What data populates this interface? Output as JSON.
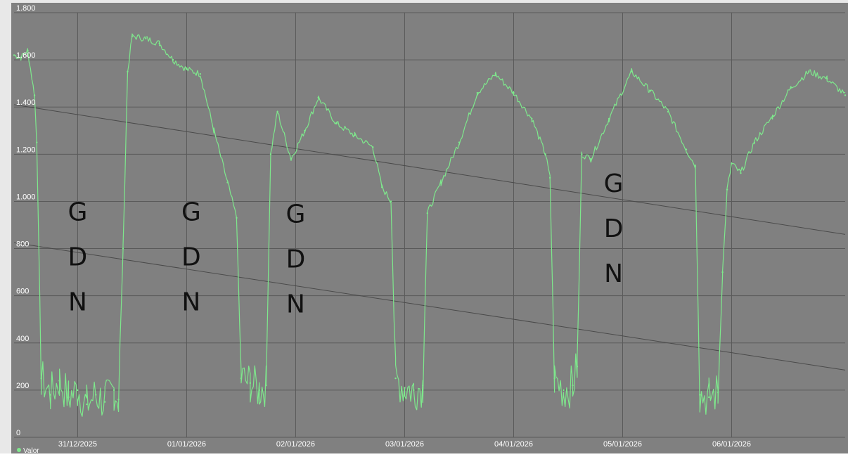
{
  "chart_data": {
    "type": "line",
    "title": "",
    "xlabel": "",
    "ylabel": "",
    "ylim": [
      0,
      1800
    ],
    "xlim": [
      "2025-12-30T10:00",
      "2026-01-07T01:00"
    ],
    "y_ticks": [
      {
        "value": 0,
        "label": "0"
      },
      {
        "value": 200,
        "label": "200"
      },
      {
        "value": 400,
        "label": "400"
      },
      {
        "value": 600,
        "label": "600"
      },
      {
        "value": 800,
        "label": "800"
      },
      {
        "value": 1000,
        "label": "1.000"
      },
      {
        "value": 1200,
        "label": "1.200"
      },
      {
        "value": 1400,
        "label": "1.400"
      },
      {
        "value": 1600,
        "label": "1.600"
      },
      {
        "value": 1800,
        "label": "1.800"
      }
    ],
    "x_ticks": [
      {
        "value": "2025-12-31T00:00",
        "label": "31/12/2025"
      },
      {
        "value": "2026-01-01T00:00",
        "label": "01/01/2026"
      },
      {
        "value": "2026-01-02T00:00",
        "label": "02/01/2026"
      },
      {
        "value": "2026-01-03T00:00",
        "label": "03/01/2026"
      },
      {
        "value": "2026-01-04T00:00",
        "label": "04/01/2026"
      },
      {
        "value": "2026-01-05T00:00",
        "label": "05/01/2026"
      },
      {
        "value": "2026-01-06T00:00",
        "label": "06/01/2026"
      }
    ],
    "grid": true,
    "legend_position": "bottom-left",
    "series": [
      {
        "name": "Valor",
        "color": "#7ee88c",
        "points": [
          [
            "2025-12-30T10:00",
            1620
          ],
          [
            "2025-12-30T11:30",
            1610
          ],
          [
            "2025-12-30T13:00",
            1640
          ],
          [
            "2025-12-30T14:30",
            1450
          ],
          [
            "2025-12-30T15:00",
            1250
          ],
          [
            "2025-12-30T16:00",
            250
          ],
          [
            "2025-12-30T18:00",
            180
          ],
          [
            "2025-12-30T20:00",
            240
          ],
          [
            "2025-12-30T22:00",
            170
          ],
          [
            "2025-12-31T00:00",
            200
          ],
          [
            "2025-12-31T02:00",
            140
          ],
          [
            "2025-12-31T04:00",
            180
          ],
          [
            "2025-12-31T06:00",
            150
          ],
          [
            "2025-12-31T08:00",
            200
          ],
          [
            "2025-12-31T09:00",
            160
          ],
          [
            "2025-12-31T10:00",
            800
          ],
          [
            "2025-12-31T11:00",
            1550
          ],
          [
            "2025-12-31T12:00",
            1700
          ],
          [
            "2025-12-31T15:00",
            1690
          ],
          [
            "2025-12-31T18:00",
            1670
          ],
          [
            "2025-12-31T21:00",
            1600
          ],
          [
            "2026-01-01T00:00",
            1560
          ],
          [
            "2026-01-01T03:00",
            1540
          ],
          [
            "2026-01-01T06:00",
            1300
          ],
          [
            "2026-01-01T09:00",
            1080
          ],
          [
            "2026-01-01T11:00",
            930
          ],
          [
            "2026-01-01T12:00",
            250
          ],
          [
            "2026-01-01T14:00",
            230
          ],
          [
            "2026-01-01T16:00",
            200
          ],
          [
            "2026-01-01T17:30",
            220
          ],
          [
            "2026-01-01T18:30",
            1200
          ],
          [
            "2026-01-01T20:00",
            1380
          ],
          [
            "2026-01-01T23:00",
            1180
          ],
          [
            "2026-01-02T02:00",
            1300
          ],
          [
            "2026-01-02T05:00",
            1440
          ],
          [
            "2026-01-02T09:00",
            1330
          ],
          [
            "2026-01-02T13:00",
            1280
          ],
          [
            "2026-01-02T17:00",
            1230
          ],
          [
            "2026-01-02T19:00",
            1060
          ],
          [
            "2026-01-02T21:00",
            1000
          ],
          [
            "2026-01-02T22:00",
            250
          ],
          [
            "2026-01-03T00:00",
            210
          ],
          [
            "2026-01-03T02:00",
            200
          ],
          [
            "2026-01-03T04:00",
            220
          ],
          [
            "2026-01-03T05:00",
            950
          ],
          [
            "2026-01-03T08:00",
            1080
          ],
          [
            "2026-01-03T12:00",
            1250
          ],
          [
            "2026-01-03T16:00",
            1460
          ],
          [
            "2026-01-03T20:00",
            1540
          ],
          [
            "2026-01-04T00:00",
            1460
          ],
          [
            "2026-01-04T04:00",
            1350
          ],
          [
            "2026-01-04T07:00",
            1200
          ],
          [
            "2026-01-04T08:00",
            1100
          ],
          [
            "2026-01-04T09:00",
            250
          ],
          [
            "2026-01-04T11:00",
            200
          ],
          [
            "2026-01-04T13:00",
            220
          ],
          [
            "2026-01-04T14:00",
            300
          ],
          [
            "2026-01-04T15:00",
            1200
          ],
          [
            "2026-01-04T17:00",
            1180
          ],
          [
            "2026-01-04T21:00",
            1350
          ],
          [
            "2026-01-05T02:00",
            1550
          ],
          [
            "2026-01-05T06:00",
            1470
          ],
          [
            "2026-01-05T10:00",
            1380
          ],
          [
            "2026-01-05T14:00",
            1220
          ],
          [
            "2026-01-05T16:00",
            1150
          ],
          [
            "2026-01-05T17:00",
            180
          ],
          [
            "2026-01-05T19:00",
            170
          ],
          [
            "2026-01-05T21:00",
            190
          ],
          [
            "2026-01-05T22:00",
            700
          ],
          [
            "2026-01-05T23:00",
            1050
          ],
          [
            "2026-01-06T00:00",
            1160
          ],
          [
            "2026-01-06T02:00",
            1120
          ],
          [
            "2026-01-06T05:00",
            1250
          ],
          [
            "2026-01-06T09:00",
            1360
          ],
          [
            "2026-01-06T13:00",
            1480
          ],
          [
            "2026-01-06T17:00",
            1550
          ],
          [
            "2026-01-06T21:00",
            1520
          ],
          [
            "2026-01-07T01:00",
            1450
          ]
        ]
      }
    ],
    "trend_lines": [
      {
        "start": [
          "2025-12-30T10:00",
          1410
        ],
        "end": [
          "2026-01-07T01:00",
          860
        ]
      },
      {
        "start": [
          "2025-12-30T10:00",
          825
        ],
        "end": [
          "2026-01-07T01:00",
          285
        ]
      }
    ],
    "annotations": [
      {
        "text": "GDN",
        "letters": [
          "G",
          "D",
          "N"
        ],
        "at": "2025-12-31T00:00",
        "y": 920
      },
      {
        "text": "GDN",
        "letters": [
          "G",
          "D",
          "N"
        ],
        "at": "2026-01-01T01:00",
        "y": 920
      },
      {
        "text": "GDN",
        "letters": [
          "G",
          "D",
          "N"
        ],
        "at": "2026-01-02T00:00",
        "y": 910
      },
      {
        "text": "GDN",
        "letters": [
          "G",
          "D",
          "N"
        ],
        "at": "2026-01-04T22:00",
        "y": 1040
      }
    ]
  },
  "colors": {
    "plot_background": "#808080",
    "grid": "#5a5a5a",
    "series": "#7ee88c",
    "trend": "#4a4a4a",
    "tick_text": "#ffffff",
    "annotation_text": "#111111"
  }
}
